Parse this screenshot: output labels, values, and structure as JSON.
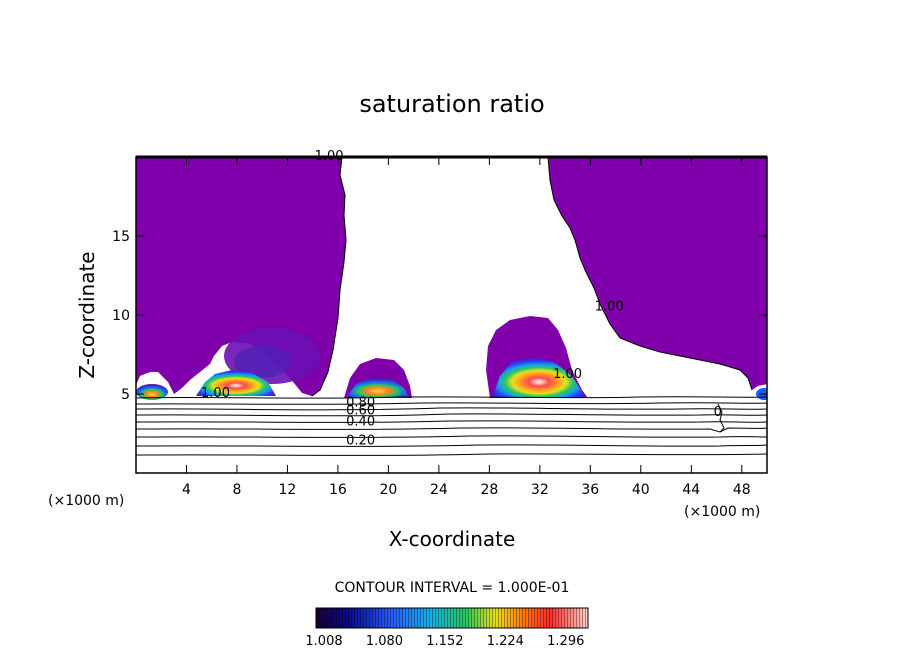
{
  "chart_data": {
    "type": "contour",
    "title": "saturation ratio",
    "xlabel": "X-coordinate",
    "ylabel": "Z-coordinate",
    "x_unit_left": "(×1000 m)",
    "x_unit_right": "(×1000 m)",
    "xlim": [
      0,
      50
    ],
    "ylim": [
      0,
      20
    ],
    "x_ticks": [
      4,
      8,
      12,
      16,
      20,
      24,
      28,
      32,
      36,
      40,
      44,
      48
    ],
    "x_tick_labels": [
      "4",
      "8",
      "12",
      "16",
      "20",
      "24",
      "28",
      "32",
      "36",
      "40",
      "44",
      "48"
    ],
    "y_ticks": [
      5,
      10,
      15
    ],
    "y_tick_labels": [
      "5",
      "10",
      "15"
    ],
    "contour_labels": [
      {
        "text": "1.00",
        "x": 15.3,
        "y": 19.8
      },
      {
        "text": "1.00",
        "x": 37.5,
        "y": 10.3
      },
      {
        "text": "1.00",
        "x": 34.2,
        "y": 6.0
      },
      {
        "text": "1.00",
        "x": 6.3,
        "y": 4.8
      },
      {
        "text": "0.80",
        "x": 17.8,
        "y": 4.2
      },
      {
        "text": "0.60",
        "x": 17.8,
        "y": 3.7
      },
      {
        "text": "0.40",
        "x": 17.8,
        "y": 3.0
      },
      {
        "text": "0.20",
        "x": 17.8,
        "y": 1.8
      },
      {
        "text": "0",
        "x": 46.1,
        "y": 3.6
      }
    ],
    "contour_interval": "CONTOUR INTERVAL = 1.000E-01",
    "colorbar": {
      "tick_labels": [
        "1.008",
        "1.080",
        "1.152",
        "1.224",
        "1.296"
      ],
      "range": [
        1.008,
        1.332
      ]
    },
    "colors": {
      "saturated_fill": "#7f00aa",
      "contour_line": "#000000"
    }
  }
}
